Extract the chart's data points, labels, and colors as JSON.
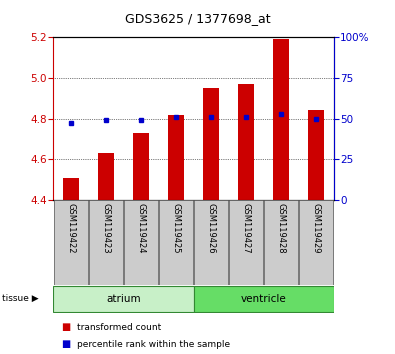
{
  "title": "GDS3625 / 1377698_at",
  "samples": [
    "GSM119422",
    "GSM119423",
    "GSM119424",
    "GSM119425",
    "GSM119426",
    "GSM119427",
    "GSM119428",
    "GSM119429"
  ],
  "red_values": [
    4.51,
    4.63,
    4.73,
    4.82,
    4.95,
    4.97,
    5.19,
    4.84
  ],
  "blue_percentiles": [
    47,
    49,
    49,
    51,
    51,
    51,
    53,
    50
  ],
  "ymin": 4.4,
  "ymax": 5.2,
  "yticks_left": [
    4.4,
    4.6,
    4.8,
    5.0,
    5.2
  ],
  "yticks_right": [
    0,
    25,
    50,
    75,
    100
  ],
  "ytick_labels_right": [
    "0",
    "25",
    "50",
    "75",
    "100%"
  ],
  "tissue_groups": [
    {
      "label": "atrium",
      "start": 0,
      "end": 3,
      "color": "#c8f0c8"
    },
    {
      "label": "ventricle",
      "start": 4,
      "end": 7,
      "color": "#66dd66"
    }
  ],
  "bar_color": "#cc0000",
  "dot_color": "#0000cc",
  "baseline": 4.4,
  "xlabel_area_color": "#cccccc",
  "grid_lines": [
    4.6,
    4.8,
    5.0
  ],
  "legend_items": [
    {
      "label": "transformed count",
      "color": "#cc0000"
    },
    {
      "label": "percentile rank within the sample",
      "color": "#0000cc"
    }
  ]
}
